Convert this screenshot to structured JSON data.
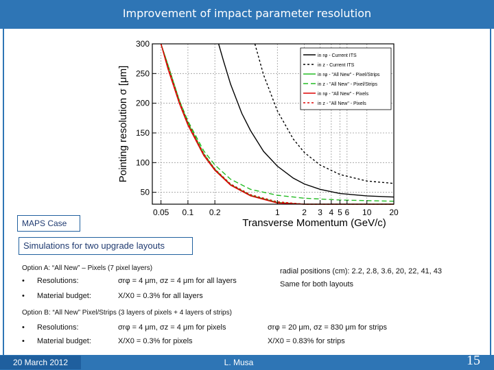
{
  "title": "Improvement of impact parameter resolution",
  "chart_data": {
    "type": "line",
    "xlabel": "Transverse Momentum (GeV/c)",
    "ylabel": "Pointing resolution σ [μm]",
    "xscale": "log",
    "xlim": [
      0.04,
      20
    ],
    "ylim": [
      30,
      300
    ],
    "x_ticks": [
      "0.05",
      "0.1",
      "0.2",
      "1",
      "2",
      "3",
      "4",
      "5",
      "6",
      "10",
      "20"
    ],
    "x_tick_values": [
      0.05,
      0.1,
      0.2,
      1,
      2,
      3,
      4,
      5,
      6,
      10,
      20
    ],
    "y_ticks": [
      50,
      100,
      150,
      200,
      250,
      300
    ],
    "grid": true,
    "legend_position": "top-right",
    "series": [
      {
        "name": "in rφ - Current ITS",
        "color": "#000000",
        "dash": "solid",
        "x": [
          0.22,
          0.25,
          0.3,
          0.4,
          0.5,
          0.7,
          1,
          1.5,
          2,
          3,
          5,
          10,
          20
        ],
        "y": [
          300,
          271,
          232,
          183,
          154,
          119,
          94,
          74,
          64,
          55,
          48,
          44,
          42
        ]
      },
      {
        "name": "in z - Current ITS",
        "color": "#000000",
        "dash": "dotted",
        "x": [
          0.56,
          0.7,
          1,
          1.5,
          2,
          3,
          5,
          10,
          20
        ],
        "y": [
          300,
          248,
          187,
          140,
          117,
          96,
          80,
          69,
          65
        ]
      },
      {
        "name": "in rφ - \"All New\" - Pixel/Strips",
        "color": "#22bb22",
        "dash": "solid",
        "x": [
          0.05,
          0.06,
          0.08,
          0.1,
          0.15,
          0.2,
          0.3,
          0.5,
          1,
          2,
          5,
          10,
          20
        ],
        "y": [
          300,
          264,
          205,
          167,
          115,
          89,
          63,
          45,
          33,
          27,
          24,
          23,
          22
        ]
      },
      {
        "name": "in z - \"All New\" - Pixel/Strips",
        "color": "#22bb22",
        "dash": "dashed",
        "x": [
          0.05,
          0.06,
          0.08,
          0.1,
          0.15,
          0.2,
          0.3,
          0.5,
          1,
          2,
          5,
          10,
          20
        ],
        "y": [
          300,
          260,
          205,
          170,
          120,
          96,
          72,
          55,
          45,
          40,
          37,
          36,
          35
        ]
      },
      {
        "name": "in rφ - \"All New\" - Pixels",
        "color": "#dd0000",
        "dash": "solid",
        "x": [
          0.05,
          0.06,
          0.08,
          0.1,
          0.15,
          0.2,
          0.3,
          0.5,
          1,
          2,
          5,
          10,
          20
        ],
        "y": [
          300,
          257,
          200,
          163,
          112,
          87,
          62,
          44,
          32,
          26,
          23,
          22,
          21
        ]
      },
      {
        "name": "in z - \"All New\" - Pixels",
        "color": "#dd0000",
        "dash": "dotted",
        "x": [
          0.05,
          0.06,
          0.08,
          0.1,
          0.15,
          0.2,
          0.3,
          0.5,
          1,
          2,
          5,
          10,
          20
        ],
        "y": [
          300,
          262,
          204,
          167,
          115,
          89,
          64,
          46,
          34,
          28,
          25,
          24,
          23
        ]
      }
    ]
  },
  "labels": {
    "maps_case": "MAPS Case",
    "simulations": "Simulations for two upgrade layouts"
  },
  "option_a": {
    "heading": "Option A: “All New” – Pixels (7 pixel layers)",
    "bullet": "•",
    "res_label": "Resolutions:",
    "res_value": "σrφ = 4 μm, σz = 4 μm for all layers",
    "mat_label": "Material budget:",
    "mat_value": "X/X0 = 0.3% for all layers"
  },
  "radial": {
    "line1": "radial positions (cm): 2.2, 2.8, 3.6, 20, 22, 41, 43",
    "line2": "Same for both layouts"
  },
  "option_b": {
    "heading": "Option B: “All New” Pixel/Strips (3 layers of pixels + 4 layers of strips)",
    "bullet": "•",
    "res_label": "Resolutions:",
    "res_value": "σrφ = 4 μm, σz = 4 μm for pixels",
    "res_strips": "σrφ = 20 μm, σz = 830 μm for strips",
    "mat_label": "Material budget:",
    "mat_value": "X/X0 = 0.3% for pixels",
    "mat_strips": "X/X0 = 0.83% for strips"
  },
  "footer": {
    "date": "20 March 2012",
    "author": "L. Musa",
    "page": "15"
  }
}
